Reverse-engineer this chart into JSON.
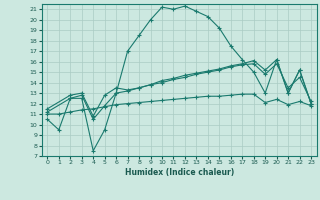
{
  "xlabel": "Humidex (Indice chaleur)",
  "background_color": "#cce8e0",
  "grid_color": "#aaccc4",
  "line_color": "#1a7a6e",
  "xlim": [
    -0.5,
    23.5
  ],
  "ylim": [
    7,
    21.5
  ],
  "x_ticks": [
    0,
    1,
    2,
    3,
    4,
    5,
    6,
    7,
    8,
    9,
    10,
    11,
    12,
    13,
    14,
    15,
    16,
    17,
    18,
    19,
    20,
    21,
    22,
    23
  ],
  "y_ticks": [
    7,
    8,
    9,
    10,
    11,
    12,
    13,
    14,
    15,
    16,
    17,
    18,
    19,
    20,
    21
  ],
  "line1_x": [
    0,
    1,
    2,
    3,
    4,
    5,
    6,
    7,
    8,
    9,
    10,
    11,
    12,
    13,
    14,
    15,
    16,
    17,
    18,
    19,
    20,
    21,
    22,
    23
  ],
  "line1_y": [
    10.5,
    9.5,
    12.5,
    12.5,
    7.5,
    9.5,
    13.0,
    17.0,
    18.5,
    20.0,
    21.2,
    21.0,
    21.3,
    20.8,
    20.3,
    19.2,
    17.5,
    16.2,
    15.0,
    13.0,
    16.2,
    13.0,
    15.2,
    12.0
  ],
  "line2_x": [
    0,
    2,
    3,
    4,
    5,
    6,
    7,
    8,
    9,
    10,
    11,
    12,
    13,
    14,
    15,
    16,
    17,
    18,
    19,
    20,
    21,
    22,
    23
  ],
  "line2_y": [
    11.5,
    12.8,
    13.0,
    10.8,
    12.8,
    13.5,
    13.3,
    13.5,
    13.8,
    14.2,
    14.4,
    14.7,
    14.9,
    15.1,
    15.3,
    15.6,
    15.8,
    16.1,
    15.2,
    16.2,
    13.0,
    15.2,
    12.0
  ],
  "line3_x": [
    0,
    2,
    3,
    4,
    5,
    6,
    7,
    8,
    9,
    10,
    11,
    12,
    13,
    14,
    15,
    16,
    17,
    18,
    19,
    20,
    21,
    22,
    23
  ],
  "line3_y": [
    11.2,
    12.5,
    12.8,
    10.5,
    11.8,
    13.0,
    13.2,
    13.5,
    13.8,
    14.0,
    14.3,
    14.5,
    14.8,
    15.0,
    15.2,
    15.5,
    15.7,
    15.8,
    14.8,
    15.8,
    13.5,
    14.5,
    12.2
  ],
  "line4_x": [
    0,
    1,
    2,
    3,
    4,
    5,
    6,
    7,
    8,
    9,
    10,
    11,
    12,
    13,
    14,
    15,
    16,
    17,
    18,
    19,
    20,
    21,
    22,
    23
  ],
  "line4_y": [
    11.0,
    11.0,
    11.2,
    11.4,
    11.5,
    11.7,
    11.9,
    12.0,
    12.1,
    12.2,
    12.3,
    12.4,
    12.5,
    12.6,
    12.7,
    12.7,
    12.8,
    12.9,
    12.9,
    12.1,
    12.4,
    11.9,
    12.2,
    11.8
  ]
}
